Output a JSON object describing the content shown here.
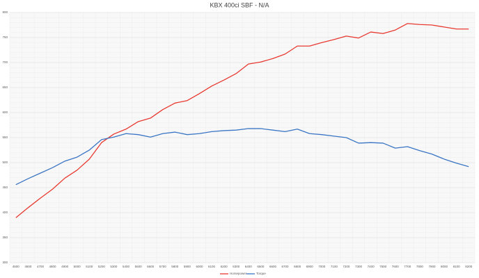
{
  "chart_data": {
    "type": "line",
    "title": "KBX 400ci SBF - N/A",
    "categories": [
      "4500",
      "4600",
      "4700",
      "4800",
      "4900",
      "5000",
      "5100",
      "5200",
      "5300",
      "5400",
      "5500",
      "5600",
      "5700",
      "5800",
      "5900",
      "6000",
      "6100",
      "6200",
      "6300",
      "6400",
      "6500",
      "6600",
      "6700",
      "6800",
      "6900",
      "7000",
      "7100",
      "7200",
      "7300",
      "7400",
      "7500",
      "7600",
      "7700",
      "7800",
      "7900",
      "8000",
      "8100",
      "8200"
    ],
    "series": [
      {
        "name": "Horsepower",
        "color": "#e8382f",
        "values": [
          390,
          410,
          429,
          447,
          469,
          485,
          507,
          540,
          557,
          567,
          582,
          589,
          606,
          619,
          624,
          638,
          653,
          665,
          678,
          697,
          701,
          708,
          717,
          733,
          733,
          740,
          746,
          753,
          749,
          761,
          758,
          765,
          778,
          776,
          775,
          771,
          767,
          767
        ]
      },
      {
        "name": "Torque",
        "color": "#3a75c4",
        "values": [
          456,
          468,
          479,
          490,
          503,
          511,
          525,
          546,
          551,
          558,
          556,
          551,
          558,
          561,
          556,
          558,
          562,
          564,
          565,
          568,
          568,
          565,
          562,
          567,
          558,
          556,
          553,
          550,
          539,
          540,
          539,
          529,
          532,
          524,
          517,
          507,
          499,
          492
        ]
      }
    ],
    "ylim": [
      300,
      800
    ],
    "yticks": [
      300,
      350,
      400,
      450,
      500,
      550,
      600,
      650,
      700,
      750,
      800
    ],
    "grid": true,
    "legend": "bottom"
  }
}
